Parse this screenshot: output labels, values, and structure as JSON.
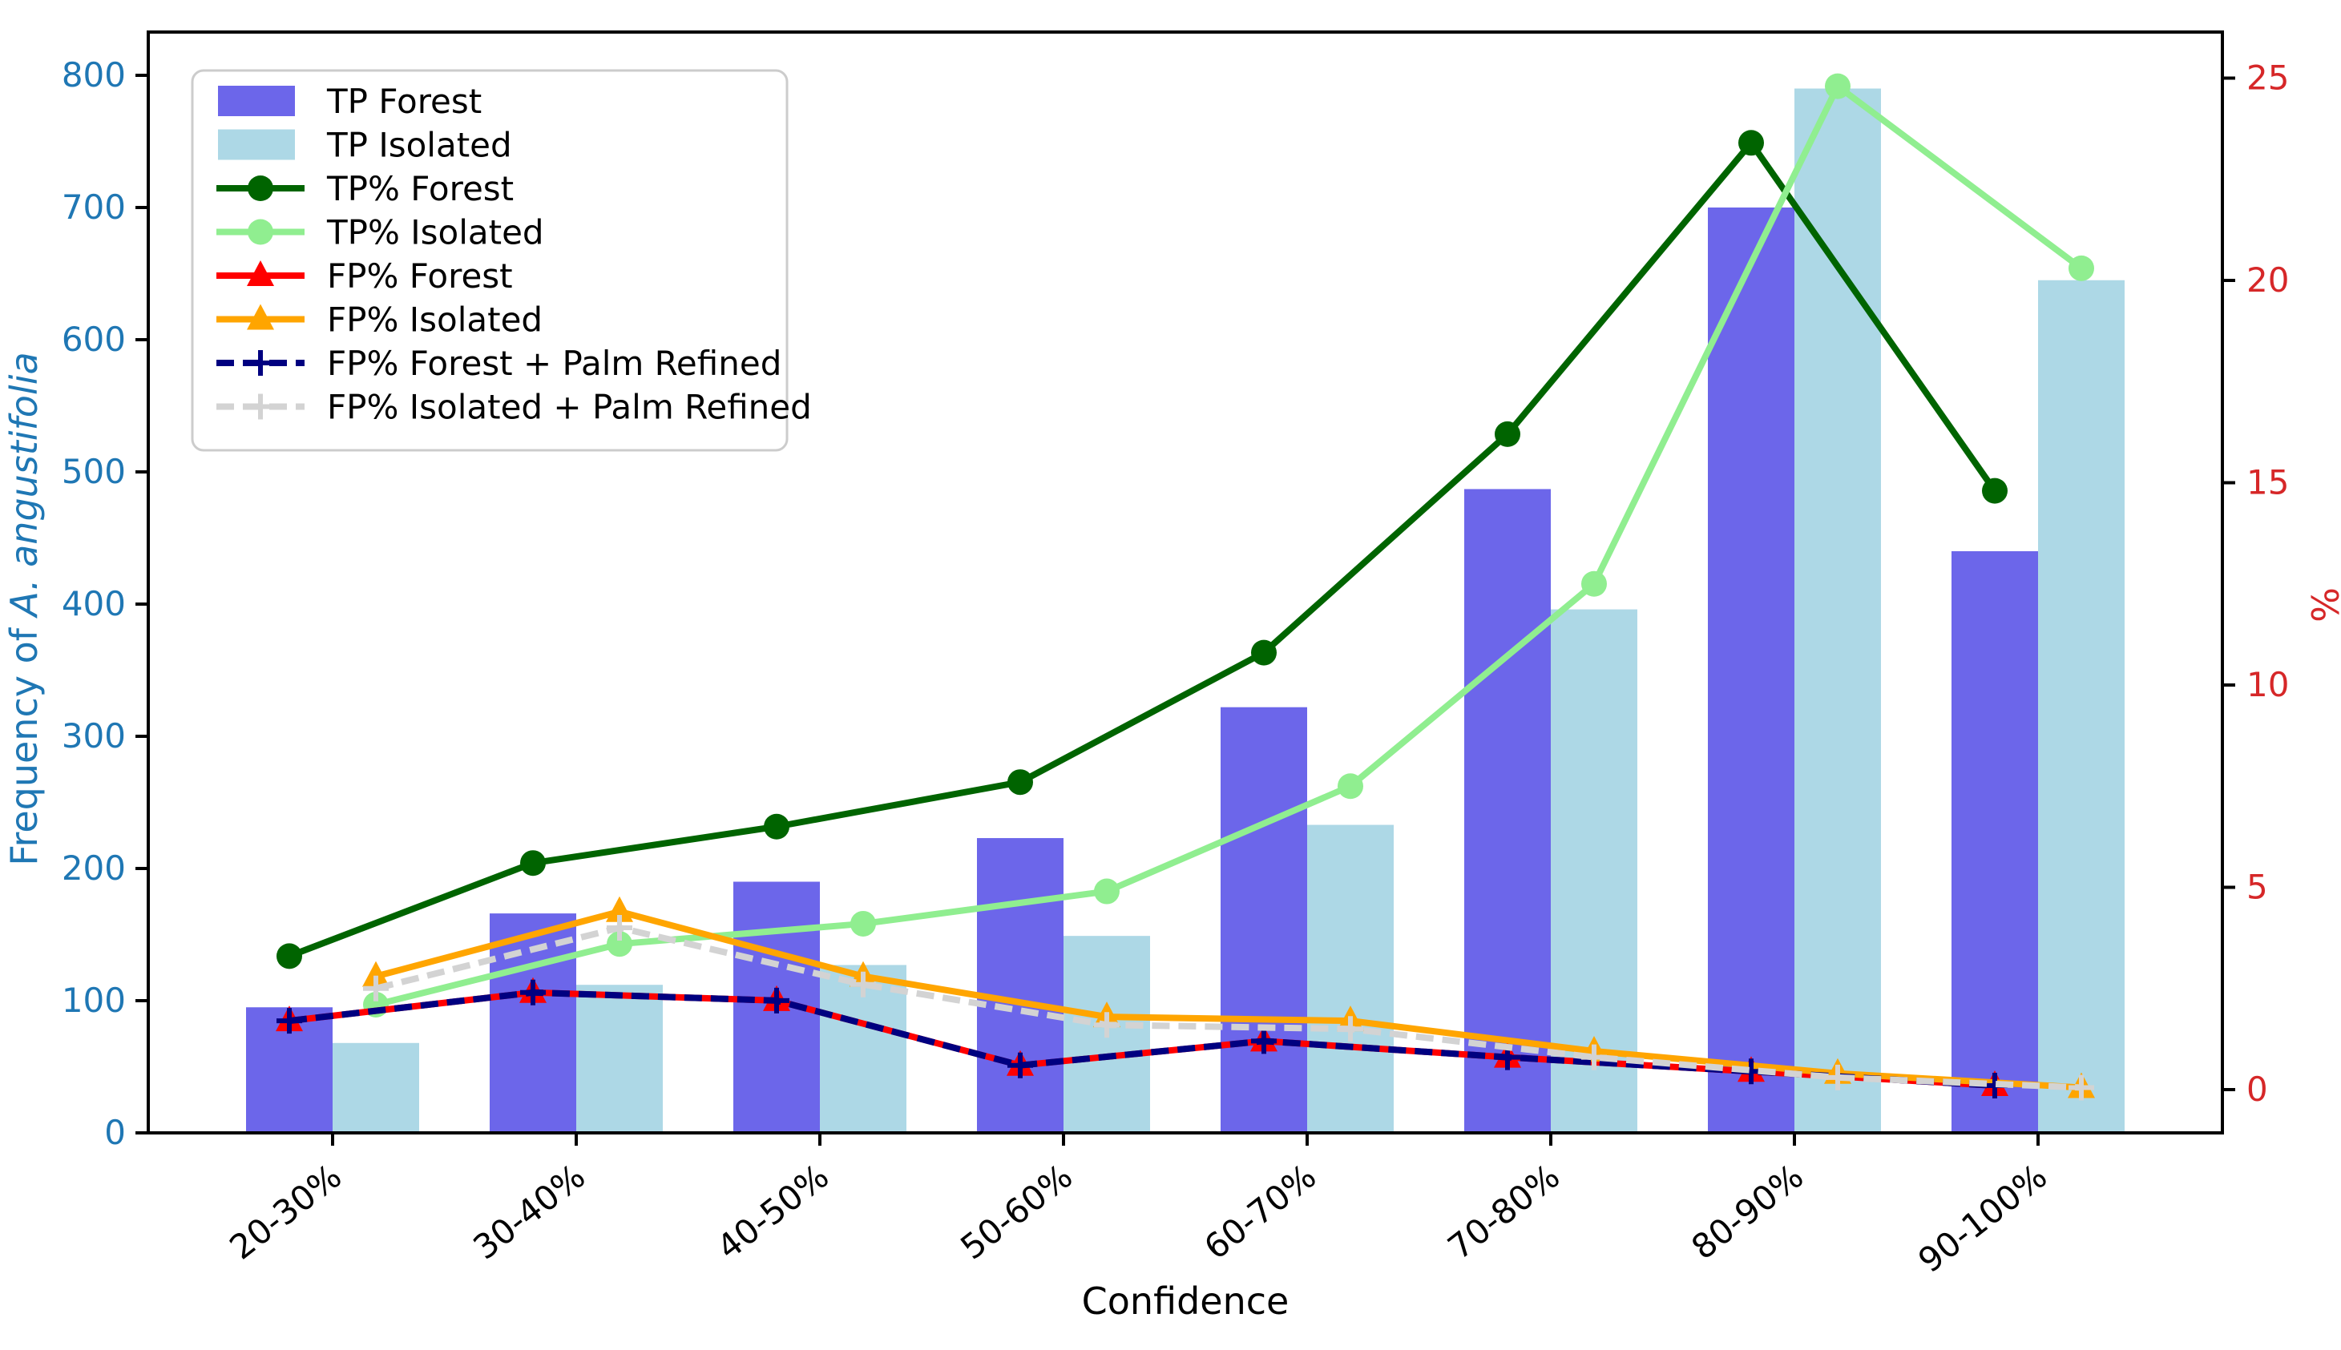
{
  "figure": {
    "xlabel": "Confidence",
    "ylabel_left_prefix": "Frequency of ",
    "ylabel_left_italic": "A. angustifolia",
    "ylabel_right": "%",
    "left_axis_color": "#1f77b4",
    "right_axis_color": "#d62728",
    "spine_color": "#000000",
    "background": "#ffffff"
  },
  "chart_data": {
    "type": "bar+line",
    "categories": [
      "20-30%",
      "30-40%",
      "40-50%",
      "50-60%",
      "60-70%",
      "70-80%",
      "80-90%",
      "90-100%"
    ],
    "xlabel": "Confidence",
    "ylabel_left": "Frequency of A. angustifolia",
    "ylabel_right": "%",
    "left_axis": {
      "ticks": [
        0,
        100,
        200,
        300,
        400,
        500,
        600,
        700,
        800
      ],
      "range": [
        0,
        800
      ],
      "color": "#1f77b4"
    },
    "right_axis": {
      "ticks": [
        0,
        5,
        10,
        15,
        20,
        25
      ],
      "range": [
        0,
        25
      ],
      "color": "#d62728"
    },
    "grid": false,
    "legend_position": "upper-left",
    "bar_series": [
      {
        "name": "TP Forest",
        "axis": "left",
        "color": "#6c66ea",
        "group": "forest",
        "values": [
          95,
          166,
          190,
          223,
          322,
          487,
          700,
          440
        ]
      },
      {
        "name": "TP Isolated",
        "axis": "left",
        "color": "#add8e6",
        "group": "isolated",
        "values": [
          68,
          112,
          127,
          149,
          233,
          396,
          790,
          645
        ]
      }
    ],
    "line_series": [
      {
        "name": "TP% Forest",
        "axis": "right",
        "color": "#006400",
        "marker": "circle",
        "dash": null,
        "group": "forest",
        "values": [
          3.3,
          5.6,
          6.5,
          7.6,
          10.8,
          16.2,
          23.4,
          14.8
        ]
      },
      {
        "name": "TP% Isolated",
        "axis": "right",
        "color": "#90ee90",
        "marker": "circle",
        "dash": null,
        "group": "isolated",
        "values": [
          2.1,
          3.6,
          4.1,
          4.9,
          7.5,
          12.5,
          24.8,
          20.3
        ]
      },
      {
        "name": "FP% Forest",
        "axis": "right",
        "color": "#ff0000",
        "marker": "triangle",
        "dash": null,
        "group": "forest",
        "values": [
          1.7,
          2.4,
          2.2,
          0.6,
          1.2,
          0.8,
          0.45,
          0.1
        ]
      },
      {
        "name": "FP% Isolated",
        "axis": "right",
        "color": "#ffa500",
        "marker": "triangle",
        "dash": null,
        "group": "isolated",
        "values": [
          2.8,
          4.4,
          2.8,
          1.8,
          1.7,
          0.95,
          0.4,
          0.05
        ]
      },
      {
        "name": "FP% Forest + Palm Refined",
        "axis": "right",
        "color": "#000080",
        "marker": "plus",
        "dash": "22,11",
        "group": "forest",
        "values": [
          1.7,
          2.4,
          2.2,
          0.6,
          1.2,
          0.8,
          0.45,
          0.1
        ]
      },
      {
        "name": "FP% Isolated + Palm Refined",
        "axis": "right",
        "color": "#d3d3d3",
        "marker": "plus",
        "dash": "22,11",
        "group": "isolated",
        "values": [
          2.5,
          4.0,
          2.6,
          1.6,
          1.5,
          0.8,
          0.3,
          0.05
        ]
      }
    ],
    "legend_entries": [
      "TP Forest",
      "TP Isolated",
      "TP% Forest",
      "TP% Isolated",
      "FP% Forest",
      "FP% Isolated",
      "FP% Forest + Palm Refined",
      "FP% Isolated + Palm Refined"
    ]
  }
}
